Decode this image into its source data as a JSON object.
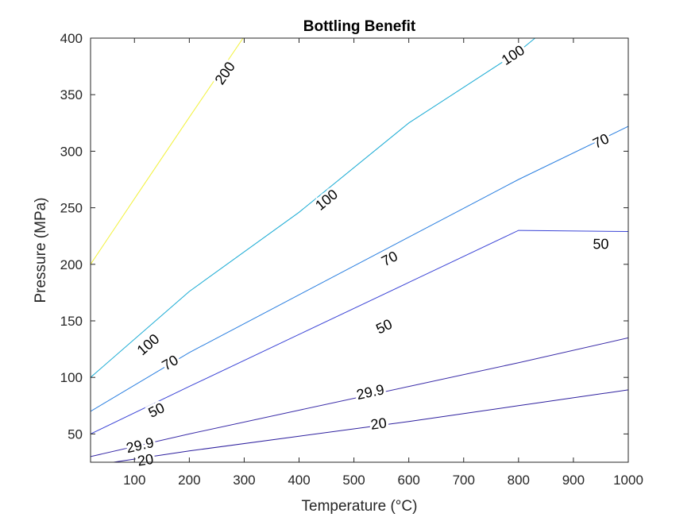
{
  "chart_data": {
    "type": "contour",
    "title": "Bottling Benefit",
    "xlabel": "Temperature (°C)",
    "ylabel": "Pressure (MPa)",
    "xlim": [
      20,
      1000
    ],
    "ylim": [
      25,
      400
    ],
    "xticks": [
      100,
      200,
      300,
      400,
      500,
      600,
      700,
      800,
      900,
      1000
    ],
    "yticks": [
      50,
      100,
      150,
      200,
      250,
      300,
      350,
      400
    ],
    "grid": false,
    "legend": "none",
    "contours": [
      {
        "level_label": "20",
        "color": "#2d1f9e",
        "points": [
          [
            20,
            22
          ],
          [
            200,
            35
          ],
          [
            400,
            48
          ],
          [
            600,
            61
          ],
          [
            800,
            75
          ],
          [
            1000,
            89
          ]
        ],
        "labels": [
          {
            "text": "20",
            "x": 545,
            "y": 59
          },
          {
            "text": "20",
            "x": 120,
            "y": 27
          }
        ]
      },
      {
        "level_label": "29.9",
        "color": "#3a2ca8",
        "points": [
          [
            20,
            30
          ],
          [
            200,
            50
          ],
          [
            400,
            71
          ],
          [
            600,
            92
          ],
          [
            800,
            113
          ],
          [
            1000,
            135
          ]
        ],
        "labels": [
          {
            "text": "29.9",
            "x": 530,
            "y": 87
          },
          {
            "text": "29.9",
            "x": 110,
            "y": 40
          }
        ]
      },
      {
        "level_label": "50",
        "color": "#3b44d6",
        "points": [
          [
            20,
            50
          ],
          [
            200,
            92
          ],
          [
            400,
            138
          ],
          [
            600,
            184
          ],
          [
            800,
            230
          ],
          [
            1000,
            229
          ]
        ],
        "labels": [
          {
            "text": "50",
            "x": 555,
            "y": 145
          },
          {
            "text": "50",
            "x": 950,
            "y": 218
          },
          {
            "text": "50",
            "x": 140,
            "y": 71
          }
        ]
      },
      {
        "level_label": "70",
        "color": "#2a7fe0",
        "points": [
          [
            20,
            70
          ],
          [
            200,
            122
          ],
          [
            400,
            173
          ],
          [
            600,
            224
          ],
          [
            800,
            275
          ],
          [
            1000,
            322
          ]
        ],
        "labels": [
          {
            "text": "70",
            "x": 565,
            "y": 205
          },
          {
            "text": "70",
            "x": 950,
            "y": 309
          },
          {
            "text": "70",
            "x": 165,
            "y": 113
          }
        ]
      },
      {
        "level_label": "100",
        "color": "#1aabd4",
        "points": [
          [
            20,
            100
          ],
          [
            200,
            176
          ],
          [
            400,
            246
          ],
          [
            600,
            325
          ],
          [
            800,
            388
          ],
          [
            830,
            400
          ]
        ],
        "labels": [
          {
            "text": "100",
            "x": 450,
            "y": 257
          },
          {
            "text": "100",
            "x": 125,
            "y": 129
          },
          {
            "text": "100",
            "x": 790,
            "y": 385
          }
        ]
      },
      {
        "level_label": "200",
        "color": "#f2f23a",
        "points": [
          [
            20,
            200
          ],
          [
            100,
            258
          ],
          [
            200,
            330
          ],
          [
            298,
            400
          ]
        ],
        "labels": [
          {
            "text": "200",
            "x": 265,
            "y": 369
          }
        ]
      }
    ]
  }
}
